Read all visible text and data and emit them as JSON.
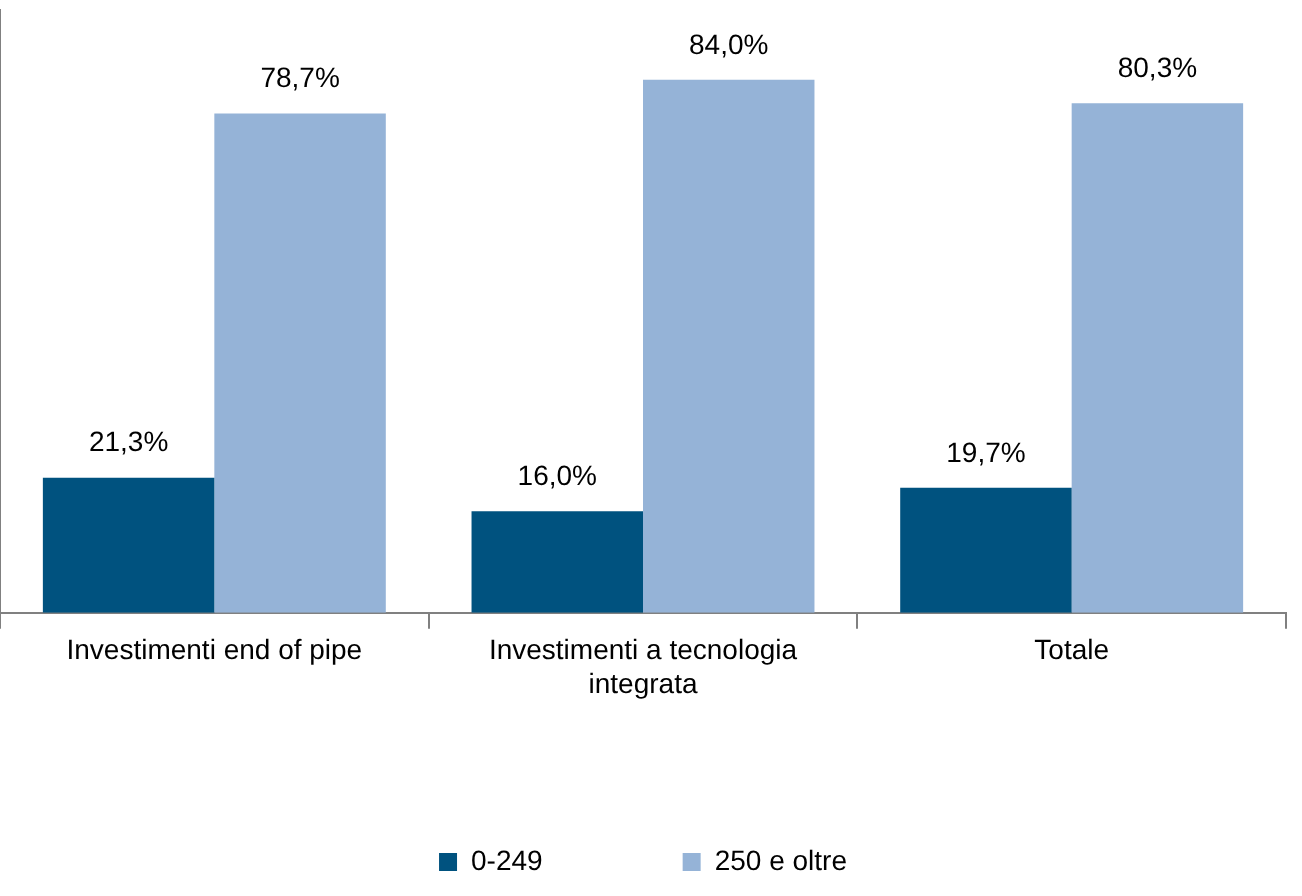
{
  "chart_data": {
    "type": "bar",
    "categories": [
      "Investimenti end of pipe",
      "Investimenti a tecnologia integrata",
      "Totale"
    ],
    "series": [
      {
        "name": "0-249",
        "color": "#00527f",
        "values": [
          21.3,
          16.0,
          19.7
        ],
        "value_labels": [
          "21,3%",
          "16,0%",
          "19,7%"
        ]
      },
      {
        "name": "250 e oltre",
        "color": "#95b3d7",
        "values": [
          78.7,
          84.0,
          80.3
        ],
        "value_labels": [
          "78,7%",
          "84,0%",
          "80,3%"
        ]
      }
    ],
    "ylim": [
      0,
      95
    ],
    "tick_labels": "x",
    "grid": false,
    "legend": "bottom"
  }
}
